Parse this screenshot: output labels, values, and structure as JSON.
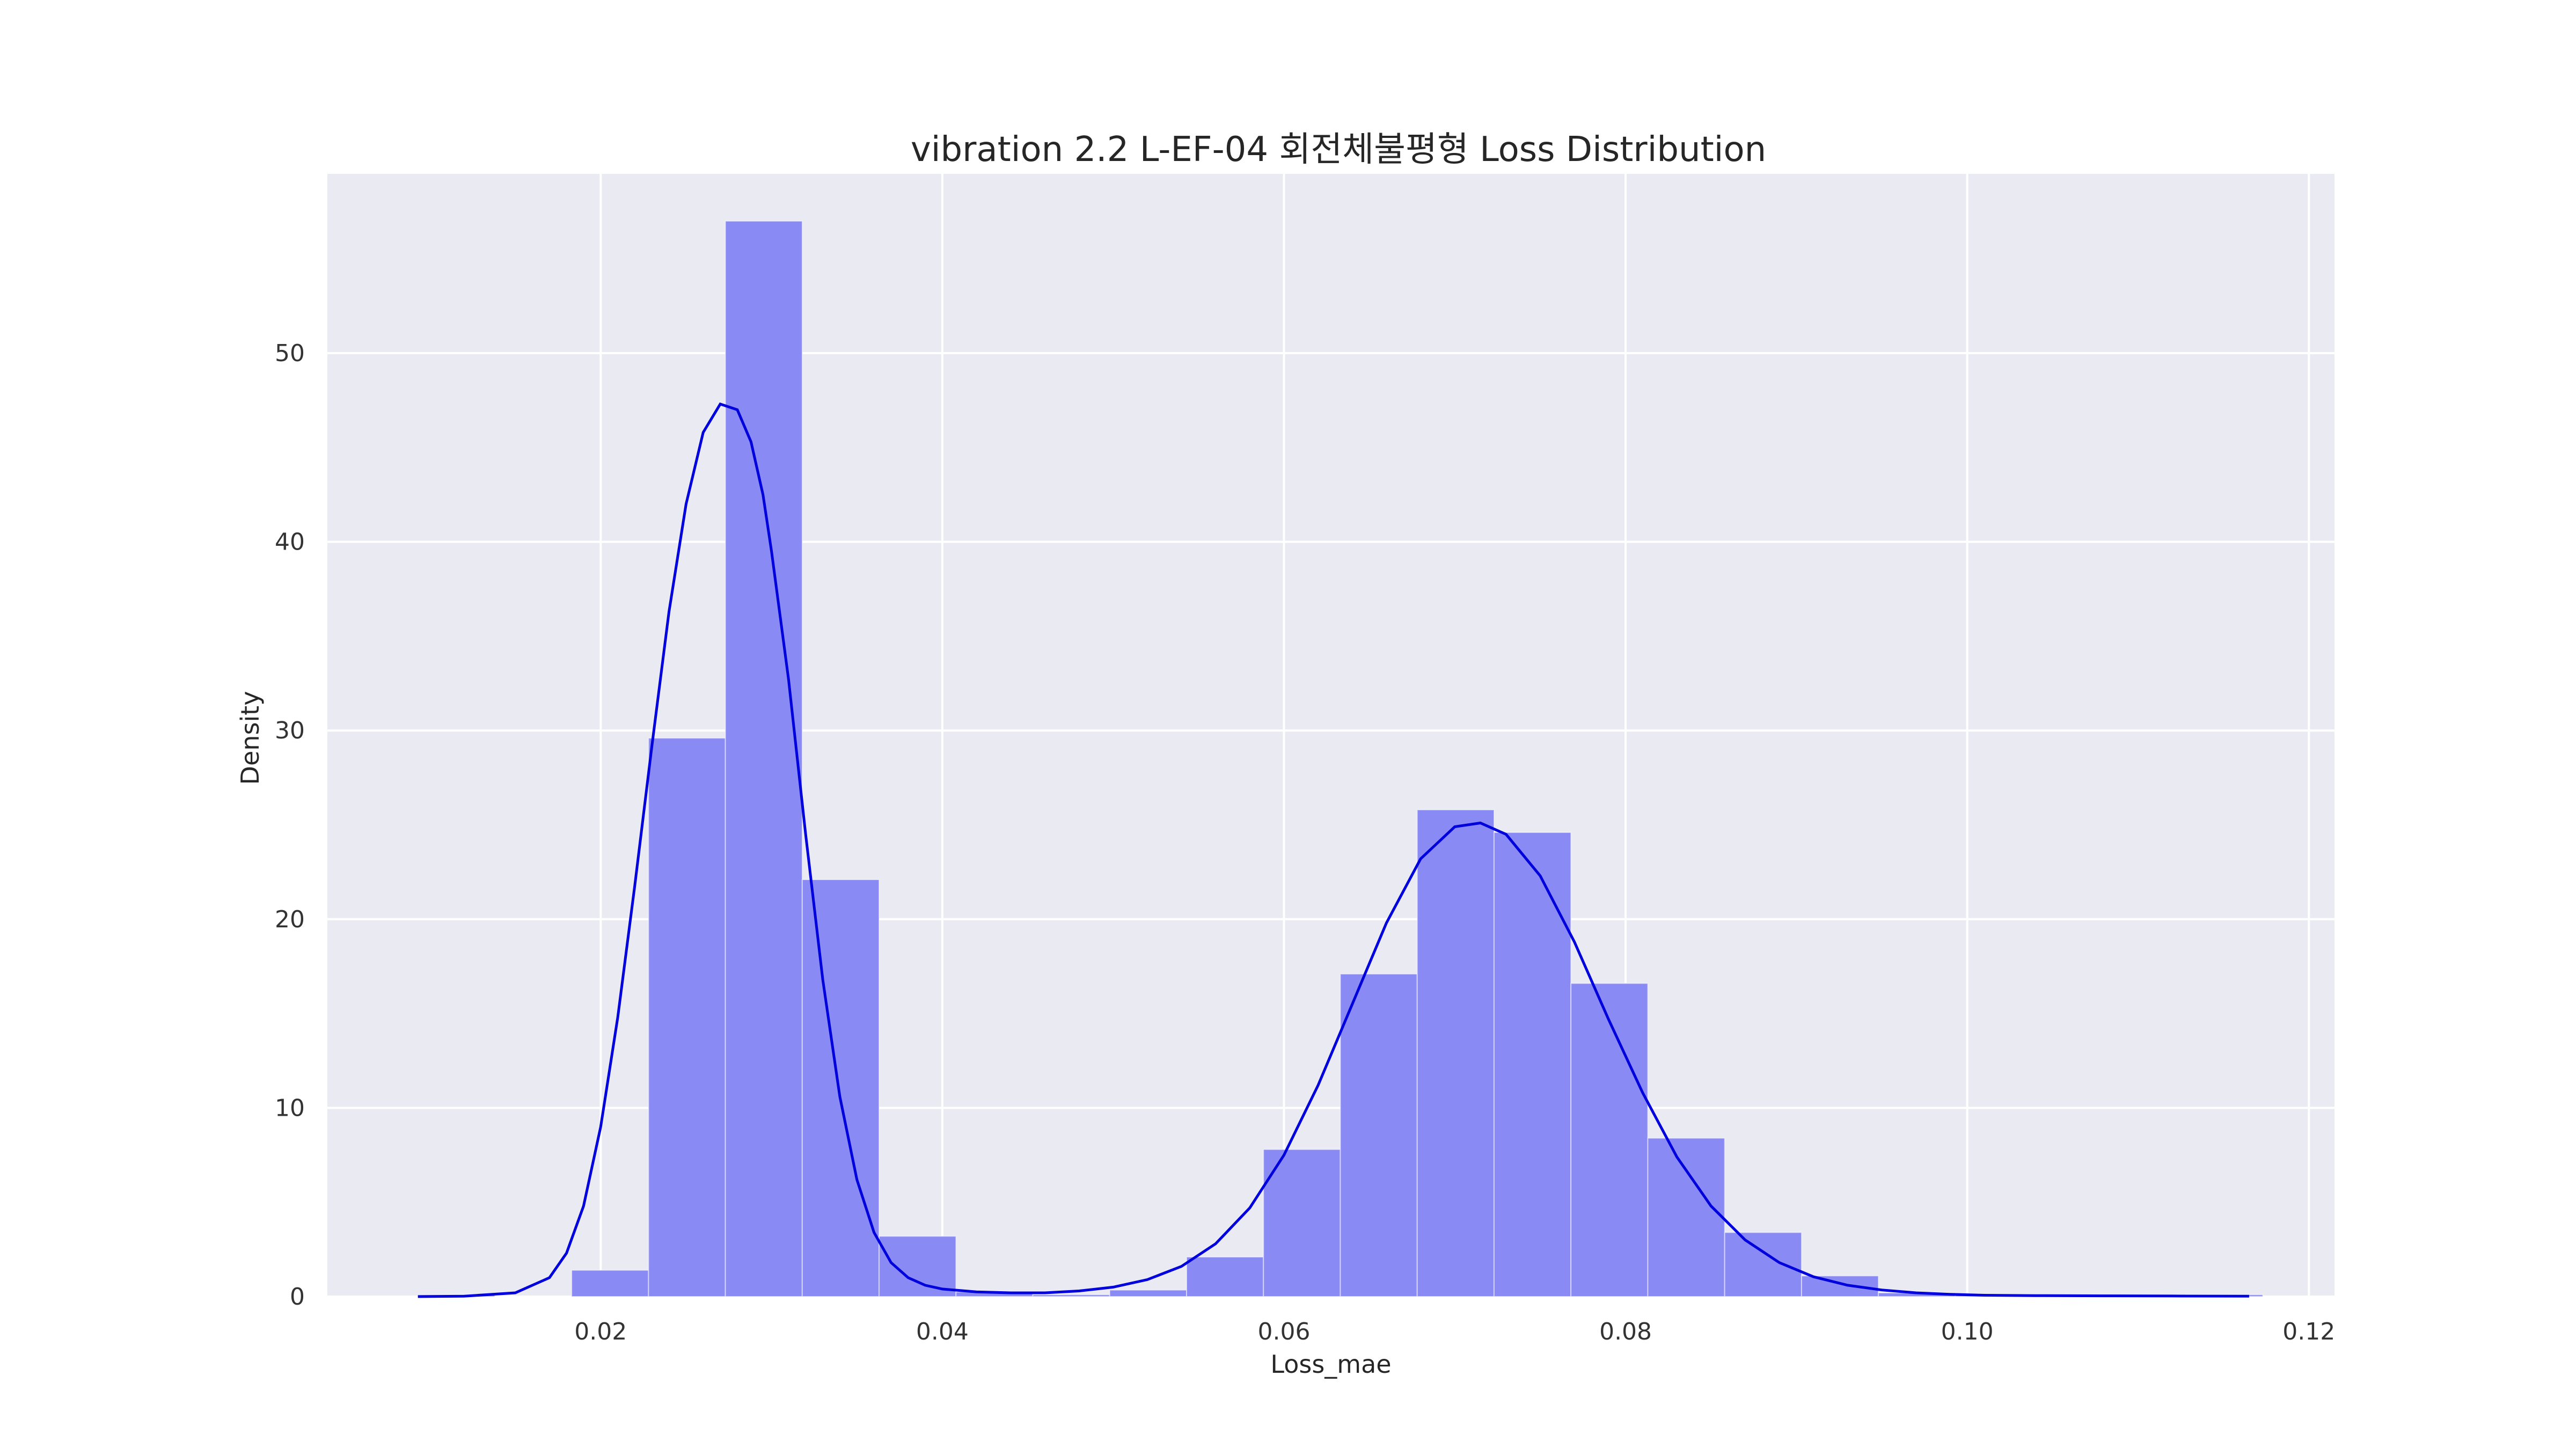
{
  "chart_data": {
    "type": "bar",
    "title": "vibration 2.2 L-EF-04 회전체불평형 Loss Distribution",
    "xlabel": "Loss_mae",
    "ylabel": "Density",
    "xlim": [
      0.004,
      0.1215
    ],
    "ylim": [
      0,
      59.5
    ],
    "xticks": [
      0.02,
      0.04,
      0.06,
      0.08,
      0.1,
      0.12
    ],
    "xtick_labels": [
      "0.02",
      "0.04",
      "0.06",
      "0.08",
      "0.10",
      "0.12"
    ],
    "yticks": [
      0,
      10,
      20,
      30,
      40,
      50
    ],
    "ytick_labels": [
      "0",
      "10",
      "20",
      "30",
      "40",
      "50"
    ],
    "grid": true,
    "background": "#eaeaf2",
    "bar_color": "#8a8af5",
    "line_color": "#0000dd",
    "bins": [
      {
        "x0": 0.0093,
        "x1": 0.0138,
        "value": 0.1
      },
      {
        "x0": 0.0138,
        "x1": 0.0183,
        "value": 0.0
      },
      {
        "x0": 0.0183,
        "x1": 0.0228,
        "value": 1.4
      },
      {
        "x0": 0.0228,
        "x1": 0.0273,
        "value": 29.6
      },
      {
        "x0": 0.0273,
        "x1": 0.0318,
        "value": 57.0
      },
      {
        "x0": 0.0318,
        "x1": 0.0363,
        "value": 22.1
      },
      {
        "x0": 0.0363,
        "x1": 0.0408,
        "value": 3.2
      },
      {
        "x0": 0.0408,
        "x1": 0.0453,
        "value": 0.25
      },
      {
        "x0": 0.0453,
        "x1": 0.0498,
        "value": 0.1
      },
      {
        "x0": 0.0498,
        "x1": 0.0543,
        "value": 0.35
      },
      {
        "x0": 0.0543,
        "x1": 0.0588,
        "value": 2.1
      },
      {
        "x0": 0.0588,
        "x1": 0.0633,
        "value": 7.8
      },
      {
        "x0": 0.0633,
        "x1": 0.0678,
        "value": 17.1
      },
      {
        "x0": 0.0678,
        "x1": 0.0723,
        "value": 25.8
      },
      {
        "x0": 0.0723,
        "x1": 0.0768,
        "value": 24.6
      },
      {
        "x0": 0.0768,
        "x1": 0.0813,
        "value": 16.6
      },
      {
        "x0": 0.0813,
        "x1": 0.0858,
        "value": 8.4
      },
      {
        "x0": 0.0858,
        "x1": 0.0903,
        "value": 3.4
      },
      {
        "x0": 0.0903,
        "x1": 0.0948,
        "value": 1.1
      },
      {
        "x0": 0.0948,
        "x1": 0.0993,
        "value": 0.2
      },
      {
        "x0": 0.0993,
        "x1": 0.1038,
        "value": 0.1
      },
      {
        "x0": 0.1038,
        "x1": 0.1083,
        "value": 0.05
      },
      {
        "x0": 0.1083,
        "x1": 0.1128,
        "value": 0.05
      },
      {
        "x0": 0.1128,
        "x1": 0.1173,
        "value": 0.1
      }
    ],
    "kde": {
      "x": [
        0.0093,
        0.012,
        0.015,
        0.017,
        0.018,
        0.019,
        0.02,
        0.021,
        0.022,
        0.023,
        0.024,
        0.025,
        0.026,
        0.027,
        0.028,
        0.0288,
        0.0295,
        0.03,
        0.031,
        0.032,
        0.033,
        0.034,
        0.035,
        0.036,
        0.037,
        0.038,
        0.039,
        0.04,
        0.042,
        0.044,
        0.046,
        0.048,
        0.05,
        0.052,
        0.054,
        0.056,
        0.058,
        0.06,
        0.062,
        0.064,
        0.066,
        0.068,
        0.07,
        0.0715,
        0.073,
        0.075,
        0.077,
        0.079,
        0.081,
        0.083,
        0.085,
        0.087,
        0.089,
        0.091,
        0.093,
        0.095,
        0.097,
        0.099,
        0.101,
        0.104,
        0.108,
        0.112,
        0.1165
      ],
      "y": [
        0.0,
        0.02,
        0.2,
        1.0,
        2.3,
        4.8,
        9.0,
        14.8,
        21.8,
        29.2,
        36.3,
        42.0,
        45.8,
        47.3,
        47.0,
        45.3,
        42.5,
        39.5,
        32.7,
        24.5,
        16.8,
        10.6,
        6.2,
        3.4,
        1.8,
        1.0,
        0.6,
        0.4,
        0.25,
        0.2,
        0.2,
        0.3,
        0.5,
        0.9,
        1.6,
        2.8,
        4.7,
        7.5,
        11.2,
        15.5,
        19.8,
        23.2,
        24.9,
        25.1,
        24.5,
        22.3,
        18.8,
        14.7,
        10.8,
        7.4,
        4.8,
        3.0,
        1.8,
        1.05,
        0.6,
        0.35,
        0.2,
        0.12,
        0.07,
        0.05,
        0.04,
        0.03,
        0.02
      ]
    }
  }
}
